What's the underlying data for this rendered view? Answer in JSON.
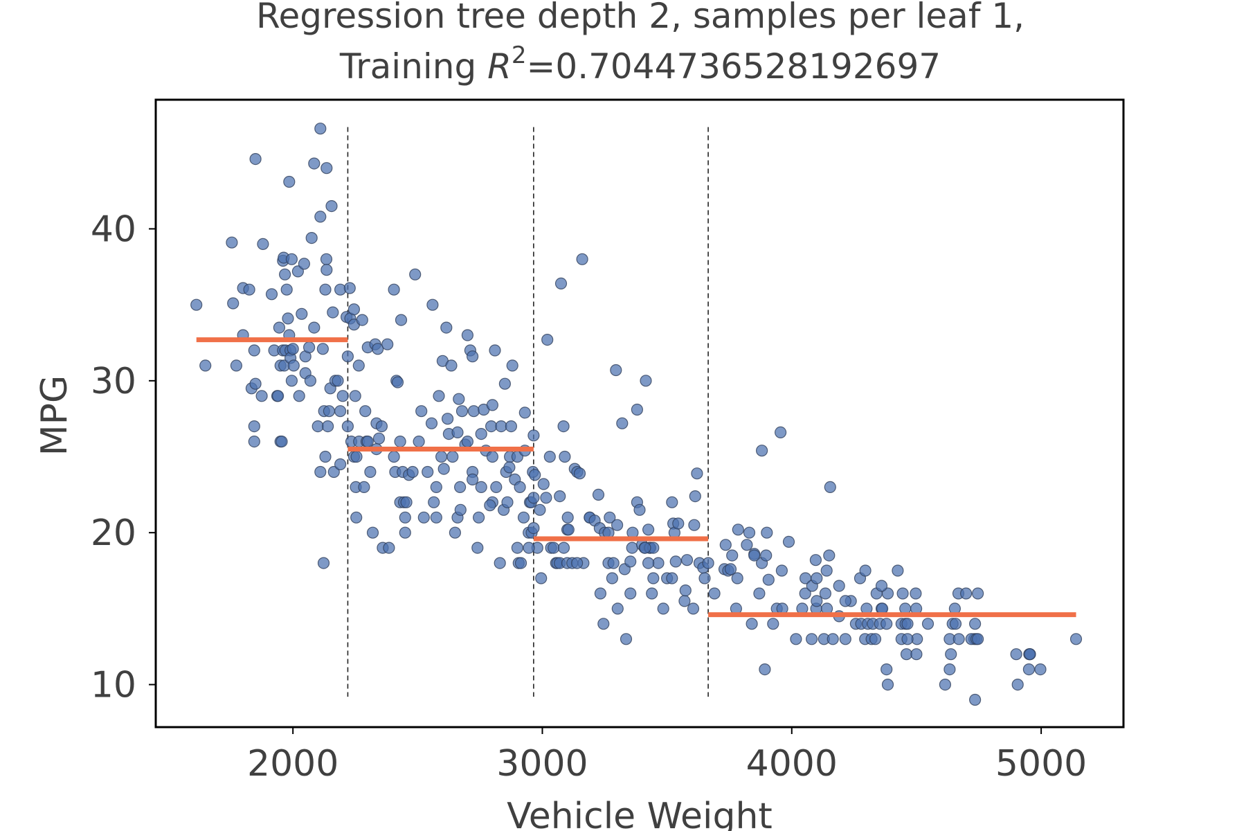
{
  "chart_data": {
    "type": "scatter",
    "title_line1": "Regression tree depth 2, samples per leaf 1,",
    "title_line2_prefix": "Training ",
    "title_r": "R",
    "title_sup": "2",
    "title_value": "=0.7044736528192697",
    "xlabel": "Vehicle Weight",
    "ylabel": "MPG",
    "xlim": [
      1450,
      5330
    ],
    "ylim": [
      7.2,
      48.5
    ],
    "xticks": [
      2000,
      3000,
      4000,
      5000
    ],
    "yticks": [
      10,
      20,
      30,
      40
    ],
    "grid": false,
    "legend": "none",
    "colors": {
      "points": "#4c72b0",
      "points_edge": "#2f3f5a",
      "fit_line": "#f07048",
      "split_line": "#222222"
    },
    "splits": [
      2220,
      2965,
      3665
    ],
    "leaf_values": [
      {
        "x": [
          1613,
          2220
        ],
        "y": 32.7
      },
      {
        "x": [
          2220,
          2965
        ],
        "y": 25.5
      },
      {
        "x": [
          2965,
          3665
        ],
        "y": 19.6
      },
      {
        "x": [
          3665,
          5140
        ],
        "y": 14.6
      }
    ],
    "points": [
      [
        1613,
        35
      ],
      [
        1649,
        31
      ],
      [
        1760,
        35.1
      ],
      [
        1755,
        39.1
      ],
      [
        1773,
        31
      ],
      [
        1800,
        36.1
      ],
      [
        1800,
        33
      ],
      [
        1825,
        36
      ],
      [
        1834,
        29.5
      ],
      [
        1845,
        32
      ],
      [
        1845,
        27
      ],
      [
        1845,
        26
      ],
      [
        1850,
        29.8
      ],
      [
        1850,
        44.6
      ],
      [
        1875,
        29
      ],
      [
        1880,
        39
      ],
      [
        1915,
        35.7
      ],
      [
        1925,
        32
      ],
      [
        1937,
        29
      ],
      [
        1940,
        29
      ],
      [
        1945,
        33.5
      ],
      [
        1950,
        26
      ],
      [
        1950,
        31
      ],
      [
        1955,
        26
      ],
      [
        1960,
        32
      ],
      [
        1960,
        37.9
      ],
      [
        1963,
        38.1
      ],
      [
        1965,
        31
      ],
      [
        1968,
        37
      ],
      [
        1970,
        32
      ],
      [
        1975,
        36
      ],
      [
        1980,
        34.1
      ],
      [
        1985,
        33
      ],
      [
        1985,
        43.1
      ],
      [
        1990,
        32
      ],
      [
        1990,
        31.5
      ],
      [
        1995,
        38
      ],
      [
        1995,
        30
      ],
      [
        2000,
        32.1
      ],
      [
        2003,
        31
      ],
      [
        2020,
        37.2
      ],
      [
        2025,
        29
      ],
      [
        2035,
        34.4
      ],
      [
        2045,
        37.7
      ],
      [
        2050,
        30.5
      ],
      [
        2050,
        31.6
      ],
      [
        2065,
        32.2
      ],
      [
        2070,
        30
      ],
      [
        2075,
        39.4
      ],
      [
        2085,
        33.5
      ],
      [
        2085,
        44.3
      ],
      [
        2100,
        27
      ],
      [
        2110,
        24
      ],
      [
        2110,
        40.8
      ],
      [
        2110,
        46.6
      ],
      [
        2120,
        32.1
      ],
      [
        2123,
        18
      ],
      [
        2125,
        28
      ],
      [
        2130,
        25
      ],
      [
        2130,
        36
      ],
      [
        2134,
        38
      ],
      [
        2135,
        44
      ],
      [
        2135,
        37.3
      ],
      [
        2140,
        27
      ],
      [
        2145,
        28
      ],
      [
        2150,
        29.5
      ],
      [
        2155,
        41.5
      ],
      [
        2160,
        34.5
      ],
      [
        2164,
        24
      ],
      [
        2170,
        30
      ],
      [
        2180,
        30
      ],
      [
        2190,
        36
      ],
      [
        2190,
        28
      ],
      [
        2190,
        24.5
      ],
      [
        2200,
        29
      ],
      [
        2215,
        34.2
      ],
      [
        2220,
        31.6
      ],
      [
        2220,
        27
      ],
      [
        2228,
        36.1
      ],
      [
        2230,
        34.1
      ],
      [
        2234,
        26
      ],
      [
        2245,
        33.7
      ],
      [
        2245,
        34.7
      ],
      [
        2245,
        25
      ],
      [
        2250,
        29
      ],
      [
        2252,
        23
      ],
      [
        2254,
        21
      ],
      [
        2255,
        25
      ],
      [
        2264,
        31
      ],
      [
        2265,
        26
      ],
      [
        2278,
        34
      ],
      [
        2285,
        23
      ],
      [
        2290,
        28
      ],
      [
        2295,
        26
      ],
      [
        2300,
        32.2
      ],
      [
        2300,
        26
      ],
      [
        2310,
        24
      ],
      [
        2320,
        20
      ],
      [
        2330,
        32.4
      ],
      [
        2335,
        27.2
      ],
      [
        2335,
        25.5
      ],
      [
        2340,
        32.1
      ],
      [
        2345,
        26.2
      ],
      [
        2356,
        27
      ],
      [
        2360,
        19
      ],
      [
        2379,
        32.4
      ],
      [
        2385,
        19
      ],
      [
        2405,
        36
      ],
      [
        2405,
        25
      ],
      [
        2410,
        24
      ],
      [
        2415,
        30
      ],
      [
        2420,
        29.9
      ],
      [
        2430,
        22
      ],
      [
        2430,
        26
      ],
      [
        2434,
        34
      ],
      [
        2440,
        24
      ],
      [
        2445,
        22
      ],
      [
        2450,
        21
      ],
      [
        2450,
        20
      ],
      [
        2455,
        22
      ],
      [
        2465,
        23.8
      ],
      [
        2480,
        24
      ],
      [
        2490,
        37
      ],
      [
        2505,
        26
      ],
      [
        2515,
        28
      ],
      [
        2525,
        21
      ],
      [
        2540,
        24
      ],
      [
        2556,
        27.2
      ],
      [
        2560,
        35
      ],
      [
        2565,
        22
      ],
      [
        2575,
        23
      ],
      [
        2575,
        21
      ],
      [
        2585,
        29
      ],
      [
        2595,
        25
      ],
      [
        2600,
        31.3
      ],
      [
        2605,
        24.2
      ],
      [
        2615,
        33.5
      ],
      [
        2620,
        27.5
      ],
      [
        2625,
        26.5
      ],
      [
        2635,
        31
      ],
      [
        2640,
        25
      ],
      [
        2650,
        20
      ],
      [
        2660,
        21
      ],
      [
        2665,
        28.8
      ],
      [
        2670,
        23
      ],
      [
        2672,
        21.5
      ],
      [
        2678,
        28
      ],
      [
        2691,
        25.8
      ],
      [
        2700,
        33
      ],
      [
        2700,
        26
      ],
      [
        2711,
        32
      ],
      [
        2720,
        24
      ],
      [
        2720,
        31.6
      ],
      [
        2725,
        28
      ],
      [
        2740,
        19
      ],
      [
        2745,
        21
      ],
      [
        2755,
        23
      ],
      [
        2755,
        26.5
      ],
      [
        2765,
        28.1
      ],
      [
        2774,
        25.4
      ],
      [
        2795,
        27
      ],
      [
        2800,
        25
      ],
      [
        2800,
        28.4
      ],
      [
        2810,
        32
      ],
      [
        2815,
        23
      ],
      [
        2830,
        18
      ],
      [
        2835,
        27
      ],
      [
        2845,
        21.5
      ],
      [
        2850,
        29.8
      ],
      [
        2855,
        24
      ],
      [
        2860,
        22
      ],
      [
        2870,
        25
      ],
      [
        2875,
        27
      ],
      [
        2880,
        31
      ],
      [
        2890,
        23.5
      ],
      [
        2900,
        25
      ],
      [
        2905,
        18
      ],
      [
        2910,
        23
      ],
      [
        2914,
        18
      ],
      [
        2925,
        21
      ],
      [
        2930,
        27.9
      ],
      [
        2945,
        20
      ],
      [
        2950,
        22
      ],
      [
        2955,
        22
      ],
      [
        2957,
        20
      ],
      [
        2962,
        24
      ],
      [
        2965,
        20.3
      ],
      [
        2965,
        26.4
      ],
      [
        2970,
        23.8
      ],
      [
        2980,
        19
      ],
      [
        2990,
        21.5
      ],
      [
        2995,
        17
      ],
      [
        3005,
        23.2
      ],
      [
        3015,
        22.3
      ],
      [
        3020,
        32.7
      ],
      [
        3030,
        25
      ],
      [
        3035,
        19
      ],
      [
        3045,
        19
      ],
      [
        3055,
        18
      ],
      [
        3060,
        18
      ],
      [
        3070,
        22.4
      ],
      [
        3070,
        18
      ],
      [
        3075,
        36.4
      ],
      [
        3085,
        27
      ],
      [
        3090,
        25
      ],
      [
        3100,
        20.2
      ],
      [
        3100,
        18
      ],
      [
        3105,
        20.2
      ],
      [
        3120,
        18
      ],
      [
        3130,
        24.2
      ],
      [
        3140,
        24
      ],
      [
        3150,
        23.9
      ],
      [
        3160,
        38
      ],
      [
        3165,
        18
      ],
      [
        3190,
        21
      ],
      [
        3190,
        21
      ],
      [
        3210,
        20.8
      ],
      [
        3225,
        22.5
      ],
      [
        3230,
        20.3
      ],
      [
        3245,
        14
      ],
      [
        3250,
        20
      ],
      [
        3265,
        20
      ],
      [
        3265,
        18
      ],
      [
        3270,
        21
      ],
      [
        3280,
        17
      ],
      [
        3285,
        18
      ],
      [
        3295,
        30.7
      ],
      [
        3300,
        20.5
      ],
      [
        3302,
        15
      ],
      [
        3320,
        27.2
      ],
      [
        3330,
        17.6
      ],
      [
        3336,
        13
      ],
      [
        3353,
        18.1
      ],
      [
        3360,
        19
      ],
      [
        3362,
        20
      ],
      [
        3380,
        22
      ],
      [
        3380,
        28.1
      ],
      [
        3390,
        21.5
      ],
      [
        3400,
        19.2
      ],
      [
        3410,
        19
      ],
      [
        3415,
        30
      ],
      [
        3425,
        20.2
      ],
      [
        3430,
        19
      ],
      [
        3433,
        19
      ],
      [
        3439,
        16
      ],
      [
        3445,
        19
      ],
      [
        3465,
        18
      ],
      [
        3485,
        15
      ],
      [
        3500,
        17
      ],
      [
        3520,
        22
      ],
      [
        3525,
        20.6
      ],
      [
        3530,
        20
      ],
      [
        3535,
        18.1
      ],
      [
        3545,
        20.6
      ],
      [
        3570,
        15.5
      ],
      [
        3574,
        16.2
      ],
      [
        3580,
        18.2
      ],
      [
        3605,
        15
      ],
      [
        3609,
        20.5
      ],
      [
        3613,
        22.4
      ],
      [
        3620,
        23.9
      ],
      [
        3630,
        18
      ],
      [
        3645,
        17.7
      ],
      [
        3651,
        17
      ],
      [
        3665,
        18
      ],
      [
        3690,
        16
      ],
      [
        3730,
        17.6
      ],
      [
        3735,
        19.2
      ],
      [
        3745,
        17.5
      ],
      [
        3755,
        17.6
      ],
      [
        3761,
        18.5
      ],
      [
        3777,
        15
      ],
      [
        3785,
        20.2
      ],
      [
        3820,
        19.2
      ],
      [
        3830,
        20
      ],
      [
        3840,
        14
      ],
      [
        3850,
        18.6
      ],
      [
        3870,
        16
      ],
      [
        3880,
        18
      ],
      [
        3880,
        25.4
      ],
      [
        3892,
        11
      ],
      [
        3897,
        18.5
      ],
      [
        3900,
        20
      ],
      [
        3907,
        16.9
      ],
      [
        3925,
        14
      ],
      [
        3940,
        15
      ],
      [
        3955,
        26.6
      ],
      [
        3960,
        17.5
      ],
      [
        3962,
        15
      ],
      [
        3988,
        19.4
      ],
      [
        4017,
        13
      ],
      [
        4042,
        15
      ],
      [
        4054,
        16
      ],
      [
        4055,
        17
      ],
      [
        4080,
        13
      ],
      [
        4082,
        16.5
      ],
      [
        4096,
        18.2
      ],
      [
        4098,
        15
      ],
      [
        4100,
        17
      ],
      [
        4129,
        13
      ],
      [
        4135,
        16
      ],
      [
        4140,
        17.5
      ],
      [
        4141,
        15
      ],
      [
        4150,
        18.5
      ],
      [
        4154,
        23
      ],
      [
        4165,
        13
      ],
      [
        4190,
        16.5
      ],
      [
        4215,
        13
      ],
      [
        4237,
        15.5
      ],
      [
        4257,
        14
      ],
      [
        4274,
        17
      ],
      [
        4278,
        14
      ],
      [
        4294,
        13
      ],
      [
        4295,
        17.5
      ],
      [
        4305,
        14
      ],
      [
        4320,
        13
      ],
      [
        4325,
        14
      ],
      [
        4335,
        13
      ],
      [
        4340,
        16
      ],
      [
        4354,
        14
      ],
      [
        4360,
        15
      ],
      [
        4363,
        15
      ],
      [
        4380,
        14
      ],
      [
        4385,
        16
      ],
      [
        4425,
        17.5
      ],
      [
        4440,
        14
      ],
      [
        4445,
        16
      ],
      [
        4455,
        15
      ],
      [
        4456,
        14
      ],
      [
        4464,
        14
      ],
      [
        4497,
        16
      ],
      [
        4499,
        15
      ],
      [
        4502,
        13
      ],
      [
        4546,
        14
      ],
      [
        4633,
        13
      ],
      [
        4638,
        12
      ],
      [
        4654,
        15
      ],
      [
        4668,
        16
      ],
      [
        4699,
        16
      ],
      [
        4732,
        13
      ],
      [
        4735,
        14
      ],
      [
        4746,
        16
      ],
      [
        4906,
        10
      ],
      [
        4951,
        11
      ],
      [
        4955,
        12
      ],
      [
        4952,
        12
      ],
      [
        4997,
        11
      ],
      [
        5140,
        13
      ],
      [
        4300,
        15
      ],
      [
        4380,
        11
      ],
      [
        4385,
        10
      ],
      [
        4440,
        13
      ],
      [
        4460,
        12
      ],
      [
        4464,
        13
      ],
      [
        4500,
        12
      ],
      [
        4615,
        10
      ],
      [
        4633,
        11
      ],
      [
        4645,
        14
      ],
      [
        4657,
        14
      ],
      [
        4670,
        13
      ],
      [
        4720,
        13
      ],
      [
        4735,
        9
      ],
      [
        4740,
        13
      ],
      [
        4746,
        13
      ],
      [
        4900,
        12
      ],
      [
        4955,
        12
      ],
      [
        4360,
        16.5
      ],
      [
        4100,
        15.5
      ],
      [
        3850,
        18.5
      ],
      [
        3782,
        17
      ],
      [
        4215,
        15.5
      ],
      [
        4190,
        14.5
      ],
      [
        3520,
        17
      ],
      [
        3445,
        17
      ],
      [
        3425,
        18
      ],
      [
        3412,
        19
      ],
      [
        3353,
        16
      ],
      [
        3233,
        16
      ],
      [
        3139,
        18
      ],
      [
        3102,
        21
      ],
      [
        3086,
        19
      ],
      [
        2965,
        22.3
      ],
      [
        2946,
        19
      ],
      [
        2930,
        25.4
      ],
      [
        2900,
        19
      ],
      [
        2868,
        24.3
      ],
      [
        2800,
        22
      ],
      [
        2790,
        21.8
      ],
      [
        2720,
        23.5
      ],
      [
        2660,
        26.6
      ]
    ]
  }
}
